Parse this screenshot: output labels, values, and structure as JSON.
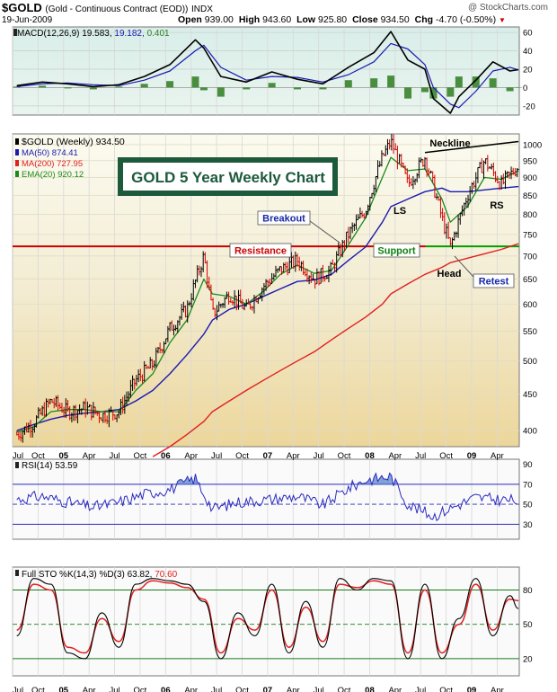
{
  "header": {
    "symbol": "$GOLD",
    "name": "(Gold - Continuous Contract (EOD))",
    "exchange": "INDX",
    "watermark": "@ StockCharts.com",
    "date": "19-Jun-2009",
    "quote": {
      "open_label": "Open",
      "open": "939.00",
      "high_label": "High",
      "high": "943.60",
      "low_label": "Low",
      "low": "925.80",
      "close_label": "Close",
      "close": "934.50",
      "chg_label": "Chg",
      "chg": "-4.70 (-0.50%)"
    }
  },
  "colors": {
    "price_up": "#000000",
    "price_down": "#d40000",
    "ma50": "#1a1ab0",
    "ma200": "#e02020",
    "ema20": "#1a8a1a",
    "macd_line": "#000000",
    "signal_line": "#1a1ab0",
    "histogram": "#2e7d20",
    "rsi_line": "#2b2bc0",
    "rsi_fill": "#4a78c8",
    "sto_k": "#000000",
    "sto_d": "#e02020",
    "resistance": "#cc0000",
    "support": "#00a000",
    "title_box": "#1d5a3c"
  },
  "chart_data": [
    {
      "type": "line",
      "panel": "macd",
      "legend_label": "MACD(12,26,9)",
      "legend_values": [
        "19.583",
        "19.182",
        "0.401"
      ],
      "y_ticks": [
        60,
        40,
        20,
        0,
        -20
      ],
      "ylim": [
        -30,
        66
      ],
      "x": [
        "2004-07",
        "2004-10",
        "2005-01",
        "2005-04",
        "2005-07",
        "2005-10",
        "2006-01",
        "2006-04",
        "2006-05",
        "2006-07",
        "2006-10",
        "2007-01",
        "2007-04",
        "2007-07",
        "2007-10",
        "2008-01",
        "2008-03",
        "2008-05",
        "2008-07",
        "2008-08",
        "2008-10",
        "2008-11",
        "2009-01",
        "2009-03",
        "2009-05",
        "2009-06"
      ],
      "series": [
        {
          "name": "MACD",
          "values": [
            2,
            6,
            4,
            1,
            3,
            12,
            25,
            52,
            43,
            12,
            6,
            17,
            9,
            4,
            22,
            38,
            61,
            30,
            20,
            -12,
            -28,
            -10,
            8,
            28,
            18,
            19.6
          ]
        },
        {
          "name": "Signal",
          "values": [
            1,
            4,
            5,
            3,
            2,
            8,
            18,
            40,
            46,
            22,
            8,
            12,
            11,
            6,
            14,
            28,
            48,
            42,
            25,
            0,
            -18,
            -22,
            -4,
            18,
            22,
            19.2
          ]
        },
        {
          "name": "Histogram",
          "values": [
            1,
            2,
            -1,
            -2,
            1,
            4,
            7,
            12,
            -3,
            -10,
            -2,
            5,
            -2,
            -2,
            8,
            10,
            13,
            -12,
            -5,
            -12,
            -10,
            12,
            12,
            10,
            -4,
            0.4
          ]
        }
      ]
    },
    {
      "type": "line",
      "panel": "price",
      "title": "GOLD 5 Year Weekly Chart",
      "y_scale": "log",
      "y_ticks": [
        400,
        450,
        500,
        550,
        600,
        650,
        700,
        750,
        800,
        850,
        900,
        950,
        1000
      ],
      "ylim": [
        380,
        1035
      ],
      "x_ticks": [
        "Jul",
        "Oct",
        "05",
        "Apr",
        "Jul",
        "Oct",
        "06",
        "Apr",
        "Jul",
        "Oct",
        "07",
        "Apr",
        "Jul",
        "Oct",
        "08",
        "Apr",
        "Jul",
        "Oct",
        "09",
        "Apr"
      ],
      "legend": [
        {
          "label": "$GOLD (Weekly)",
          "value": "934.50"
        },
        {
          "label": "MA(50)",
          "value": "874.41"
        },
        {
          "label": "MA(200)",
          "value": "727.95"
        },
        {
          "label": "EMA(20)",
          "value": "920.12"
        }
      ],
      "x": [
        "2004-07",
        "2004-09",
        "2004-11",
        "2005-01",
        "2005-03",
        "2005-05",
        "2005-07",
        "2005-09",
        "2005-11",
        "2006-01",
        "2006-03",
        "2006-05",
        "2006-06",
        "2006-08",
        "2006-10",
        "2006-12",
        "2007-02",
        "2007-04",
        "2007-06",
        "2007-08",
        "2007-10",
        "2007-12",
        "2008-02",
        "2008-03",
        "2008-05",
        "2008-07",
        "2008-09",
        "2008-10",
        "2008-12",
        "2009-02",
        "2009-04",
        "2009-06"
      ],
      "series": [
        {
          "name": "Price",
          "values": [
            395,
            410,
            440,
            425,
            430,
            420,
            425,
            470,
            495,
            555,
            590,
            700,
            580,
            620,
            590,
            635,
            670,
            690,
            650,
            670,
            750,
            810,
            960,
            1010,
            880,
            960,
            790,
            720,
            850,
            950,
            880,
            934.5
          ]
        },
        {
          "name": "MA(50)",
          "values": [
            400,
            408,
            415,
            420,
            423,
            425,
            428,
            440,
            455,
            480,
            510,
            545,
            570,
            590,
            600,
            615,
            630,
            645,
            648,
            660,
            690,
            720,
            780,
            820,
            840,
            860,
            870,
            860,
            860,
            865,
            870,
            874.41
          ]
        },
        {
          "name": "MA(200)",
          "values": [
            null,
            null,
            null,
            null,
            null,
            null,
            null,
            null,
            368,
            380,
            395,
            412,
            425,
            440,
            455,
            470,
            485,
            500,
            515,
            535,
            555,
            575,
            600,
            620,
            640,
            660,
            675,
            685,
            695,
            705,
            715,
            727.95
          ]
        },
        {
          "name": "EMA(20)",
          "values": [
            398,
            405,
            425,
            428,
            428,
            425,
            425,
            455,
            480,
            530,
            570,
            650,
            620,
            615,
            600,
            625,
            660,
            680,
            662,
            668,
            725,
            790,
            900,
            960,
            920,
            925,
            840,
            780,
            820,
            900,
            895,
            920.12
          ]
        }
      ],
      "annotations": [
        {
          "text": "Breakout",
          "x": "2007-09",
          "y": 800
        },
        {
          "text": "Resistance",
          "x": "2006-09",
          "y": 730
        },
        {
          "text": "Support",
          "x": "2008-06",
          "y": 730
        },
        {
          "text": "Neckline",
          "x": "2008-11",
          "y": 1005
        },
        {
          "text": "LS",
          "x": "2008-05",
          "y": 835
        },
        {
          "text": "Head",
          "x": "2008-10",
          "y": 680
        },
        {
          "text": "RS",
          "x": "2009-04",
          "y": 845
        },
        {
          "text": "Retest",
          "x": "2009-02",
          "y": 655
        }
      ],
      "resistance_level": 722,
      "neckline": [
        {
          "x": "2008-07",
          "y": 975
        },
        {
          "x": "2009-06",
          "y": 1010
        }
      ]
    },
    {
      "type": "line",
      "panel": "rsi",
      "legend_label": "RSI(14)",
      "legend_value": "53.59",
      "y_ticks": [
        90,
        70,
        50,
        30
      ],
      "ylim": [
        15,
        95
      ],
      "x": [
        "2004-07",
        "2004-10",
        "2005-01",
        "2005-04",
        "2005-07",
        "2005-10",
        "2006-01",
        "2006-04",
        "2006-06",
        "2006-09",
        "2007-01",
        "2007-04",
        "2007-07",
        "2007-10",
        "2007-12",
        "2008-03",
        "2008-05",
        "2008-08",
        "2008-10",
        "2009-01",
        "2009-03",
        "2009-06"
      ],
      "series": [
        {
          "name": "RSI",
          "values": [
            55,
            58,
            52,
            47,
            52,
            60,
            65,
            76,
            45,
            52,
            55,
            58,
            49,
            66,
            74,
            78,
            50,
            38,
            46,
            57,
            55,
            53.59
          ]
        }
      ]
    },
    {
      "type": "line",
      "panel": "sto",
      "legend_label": "Full STO %K(14,3) %D(3)",
      "legend_values": [
        "63.82",
        "70.60"
      ],
      "y_ticks": [
        80,
        50,
        20
      ],
      "ylim": [
        5,
        100
      ],
      "x": [
        "2004-07",
        "2004-09",
        "2004-11",
        "2005-01",
        "2005-03",
        "2005-05",
        "2005-07",
        "2005-09",
        "2005-11",
        "2006-01",
        "2006-03",
        "2006-05",
        "2006-07",
        "2006-09",
        "2006-11",
        "2007-01",
        "2007-03",
        "2007-05",
        "2007-07",
        "2007-09",
        "2007-11",
        "2008-01",
        "2008-03",
        "2008-05",
        "2008-07",
        "2008-09",
        "2008-11",
        "2009-01",
        "2009-03",
        "2009-05",
        "2009-06"
      ],
      "series": [
        {
          "name": "%K",
          "values": [
            40,
            90,
            85,
            25,
            20,
            60,
            30,
            85,
            90,
            88,
            85,
            70,
            20,
            60,
            40,
            85,
            25,
            70,
            30,
            90,
            80,
            90,
            88,
            20,
            85,
            20,
            55,
            90,
            40,
            75,
            63.82
          ]
        },
        {
          "name": "%D",
          "values": [
            45,
            85,
            80,
            30,
            25,
            55,
            35,
            80,
            88,
            86,
            82,
            72,
            25,
            55,
            45,
            80,
            30,
            65,
            35,
            85,
            82,
            88,
            85,
            25,
            80,
            25,
            50,
            85,
            45,
            72,
            70.6
          ]
        }
      ]
    }
  ]
}
